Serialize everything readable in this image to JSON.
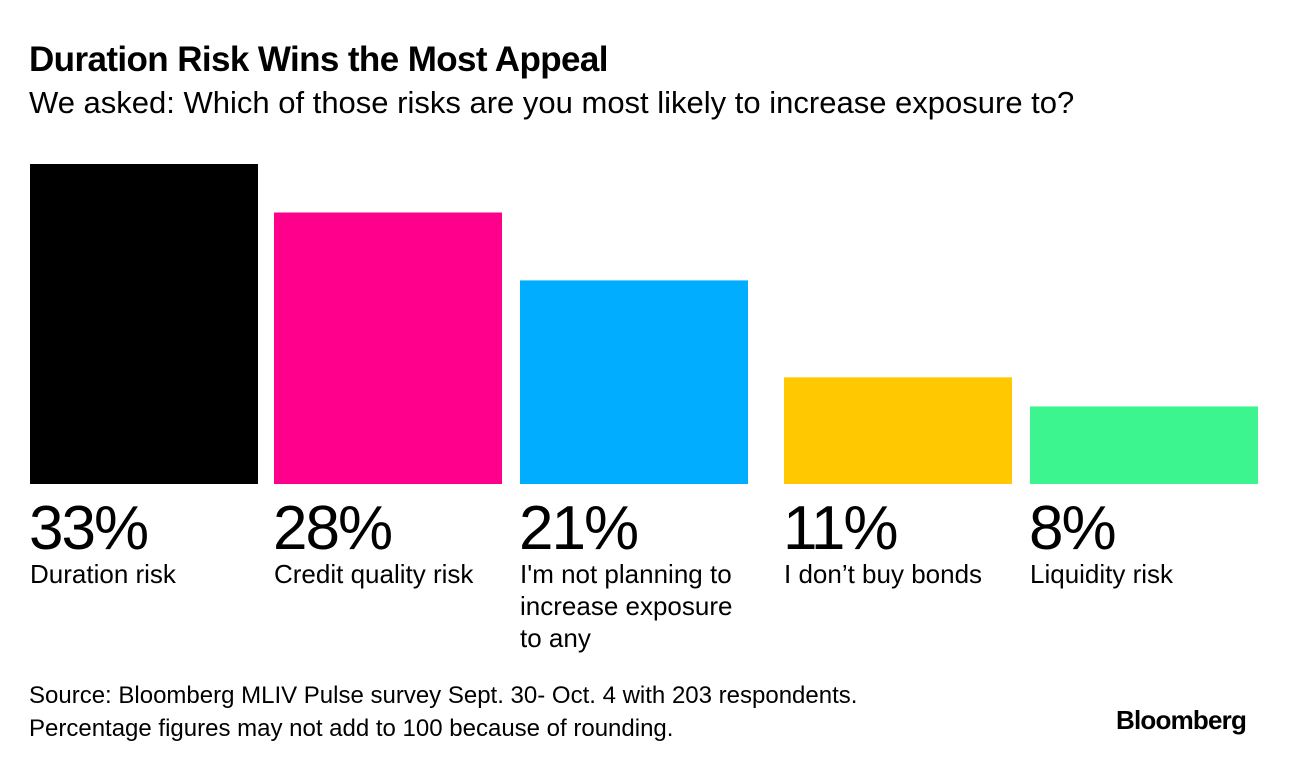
{
  "header": {
    "title": "Duration Risk Wins the Most Appeal",
    "subtitle": "We asked: Which of those risks are you most likely to increase exposure to?"
  },
  "chart_data": {
    "type": "bar",
    "title": "Duration Risk Wins the Most Appeal",
    "subtitle": "We asked: Which of those risks are you most likely to increase exposure to?",
    "categories": [
      "Duration risk",
      "Credit quality risk",
      "I'm not planning to increase exposure to any",
      "I don’t buy bonds",
      "Liquidity risk"
    ],
    "category_lines": [
      [
        "Duration risk"
      ],
      [
        "Credit quality risk"
      ],
      [
        "I'm not planning to",
        "increase exposure",
        "to any"
      ],
      [
        "I don’t buy bonds"
      ],
      [
        "Liquidity risk"
      ]
    ],
    "values": [
      33,
      28,
      21,
      11,
      8
    ],
    "value_labels": [
      "33%",
      "28%",
      "21%",
      "11%",
      "8%"
    ],
    "colors": [
      "#000000",
      "#ff008c",
      "#00adff",
      "#ffc800",
      "#3cf58f"
    ],
    "unit": "%",
    "ylim": [
      0,
      33
    ],
    "grid": false,
    "axes_visible": false,
    "legend": "none",
    "xlabel": "",
    "ylabel": ""
  },
  "footer": {
    "source_line1": "Source: Bloomberg MLIV Pulse survey Sept. 30- Oct. 4 with 203 respondents.",
    "source_line2": "Percentage figures may not add to 100 because of rounding.",
    "logo": "Bloomberg"
  }
}
